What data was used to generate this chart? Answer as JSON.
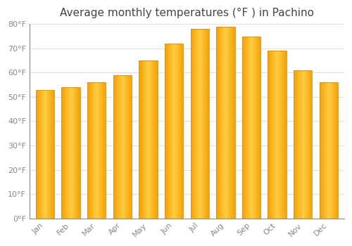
{
  "title": "Average monthly temperatures (°F ) in Pachino",
  "months": [
    "Jan",
    "Feb",
    "Mar",
    "Apr",
    "May",
    "Jun",
    "Jul",
    "Aug",
    "Sep",
    "Oct",
    "Nov",
    "Dec"
  ],
  "values": [
    53,
    54,
    56,
    59,
    65,
    72,
    78,
    79,
    75,
    69,
    61,
    56
  ],
  "bar_color_light": "#FFCC44",
  "bar_color_dark": "#F5A000",
  "bar_edge_color": "#C8922A",
  "ylim": [
    0,
    80
  ],
  "yticks": [
    0,
    10,
    20,
    30,
    40,
    50,
    60,
    70,
    80
  ],
  "ytick_labels": [
    "0°F",
    "10°F",
    "20°F",
    "30°F",
    "40°F",
    "50°F",
    "60°F",
    "70°F",
    "80°F"
  ],
  "background_color": "#FFFFFF",
  "grid_color": "#E0E0E0",
  "title_fontsize": 11,
  "tick_fontsize": 8,
  "tick_color": "#888888",
  "title_color": "#444444",
  "bar_width": 0.72
}
